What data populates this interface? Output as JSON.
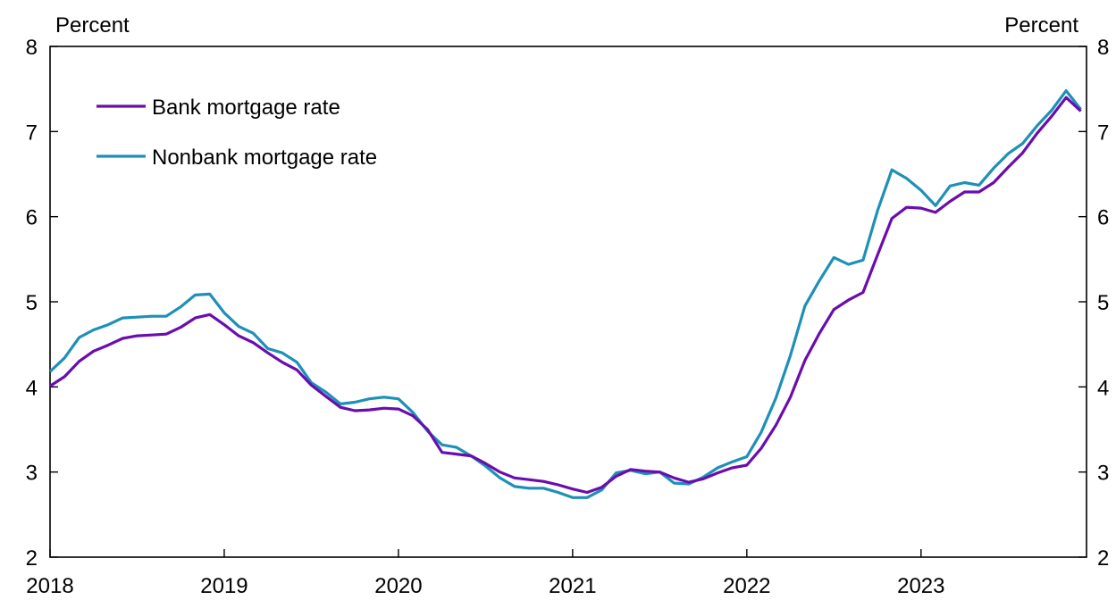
{
  "chart_data": {
    "type": "line",
    "title": "",
    "xlabel": "",
    "ylabel_left": "Percent",
    "ylabel_right": "Percent",
    "ylim": [
      2,
      8
    ],
    "yticks": [
      2,
      3,
      4,
      5,
      6,
      7,
      8
    ],
    "xlim": [
      2018.0,
      2023.95
    ],
    "xticks": [
      2018,
      2019,
      2020,
      2021,
      2022,
      2023
    ],
    "grid": false,
    "legend_position": "top-left",
    "colors": {
      "bank": "#6a0dad",
      "nonbank": "#1e90b8"
    },
    "series": [
      {
        "name": "Bank mortgage rate",
        "color": "#6a0dad",
        "x": [
          2018.0,
          2018.083,
          2018.167,
          2018.25,
          2018.333,
          2018.417,
          2018.5,
          2018.583,
          2018.667,
          2018.75,
          2018.833,
          2018.917,
          2019.0,
          2019.083,
          2019.167,
          2019.25,
          2019.333,
          2019.417,
          2019.5,
          2019.583,
          2019.667,
          2019.75,
          2019.833,
          2019.917,
          2020.0,
          2020.083,
          2020.167,
          2020.25,
          2020.333,
          2020.417,
          2020.5,
          2020.583,
          2020.667,
          2020.75,
          2020.833,
          2020.917,
          2021.0,
          2021.083,
          2021.167,
          2021.25,
          2021.333,
          2021.417,
          2021.5,
          2021.583,
          2021.667,
          2021.75,
          2021.833,
          2021.917,
          2022.0,
          2022.083,
          2022.167,
          2022.25,
          2022.333,
          2022.417,
          2022.5,
          2022.583,
          2022.667,
          2022.75,
          2022.833,
          2022.917,
          2023.0,
          2023.083,
          2023.167,
          2023.25,
          2023.333,
          2023.417,
          2023.5,
          2023.583,
          2023.667,
          2023.75,
          2023.833,
          2023.917
        ],
        "values": [
          4.01,
          4.12,
          4.3,
          4.42,
          4.49,
          4.57,
          4.6,
          4.61,
          4.62,
          4.7,
          4.81,
          4.85,
          4.73,
          4.6,
          4.52,
          4.4,
          4.29,
          4.2,
          4.02,
          3.89,
          3.76,
          3.72,
          3.73,
          3.75,
          3.74,
          3.66,
          3.5,
          3.23,
          3.21,
          3.19,
          3.1,
          3.0,
          2.93,
          2.91,
          2.89,
          2.85,
          2.8,
          2.76,
          2.82,
          2.95,
          3.03,
          3.01,
          3.0,
          2.93,
          2.88,
          2.92,
          2.99,
          3.05,
          3.08,
          3.28,
          3.55,
          3.88,
          4.31,
          4.63,
          4.91,
          5.02,
          5.11,
          5.55,
          5.98,
          6.11,
          6.1,
          6.05,
          6.18,
          6.29,
          6.29,
          6.4,
          6.58,
          6.75,
          6.98,
          7.18,
          7.4,
          7.24
        ]
      },
      {
        "name": "Nonbank mortgage rate",
        "color": "#1e90b8",
        "x": [
          2018.0,
          2018.083,
          2018.167,
          2018.25,
          2018.333,
          2018.417,
          2018.5,
          2018.583,
          2018.667,
          2018.75,
          2018.833,
          2018.917,
          2019.0,
          2019.083,
          2019.167,
          2019.25,
          2019.333,
          2019.417,
          2019.5,
          2019.583,
          2019.667,
          2019.75,
          2019.833,
          2019.917,
          2020.0,
          2020.083,
          2020.167,
          2020.25,
          2020.333,
          2020.417,
          2020.5,
          2020.583,
          2020.667,
          2020.75,
          2020.833,
          2020.917,
          2021.0,
          2021.083,
          2021.167,
          2021.25,
          2021.333,
          2021.417,
          2021.5,
          2021.583,
          2021.667,
          2021.75,
          2021.833,
          2021.917,
          2022.0,
          2022.083,
          2022.167,
          2022.25,
          2022.333,
          2022.417,
          2022.5,
          2022.583,
          2022.667,
          2022.75,
          2022.833,
          2022.917,
          2023.0,
          2023.083,
          2023.167,
          2023.25,
          2023.333,
          2023.417,
          2023.5,
          2023.583,
          2023.667,
          2023.75,
          2023.833,
          2023.917
        ],
        "values": [
          4.18,
          4.34,
          4.58,
          4.67,
          4.73,
          4.81,
          4.82,
          4.83,
          4.83,
          4.94,
          5.08,
          5.09,
          4.87,
          4.71,
          4.63,
          4.45,
          4.4,
          4.29,
          4.05,
          3.94,
          3.8,
          3.82,
          3.86,
          3.88,
          3.86,
          3.7,
          3.48,
          3.32,
          3.29,
          3.19,
          3.07,
          2.93,
          2.83,
          2.81,
          2.81,
          2.76,
          2.7,
          2.7,
          2.79,
          2.99,
          3.02,
          2.98,
          3.0,
          2.87,
          2.86,
          2.94,
          3.05,
          3.12,
          3.18,
          3.47,
          3.87,
          4.37,
          4.95,
          5.25,
          5.52,
          5.44,
          5.49,
          6.07,
          6.55,
          6.45,
          6.31,
          6.13,
          6.36,
          6.4,
          6.37,
          6.57,
          6.74,
          6.86,
          7.07,
          7.25,
          7.48,
          7.26
        ]
      }
    ]
  }
}
